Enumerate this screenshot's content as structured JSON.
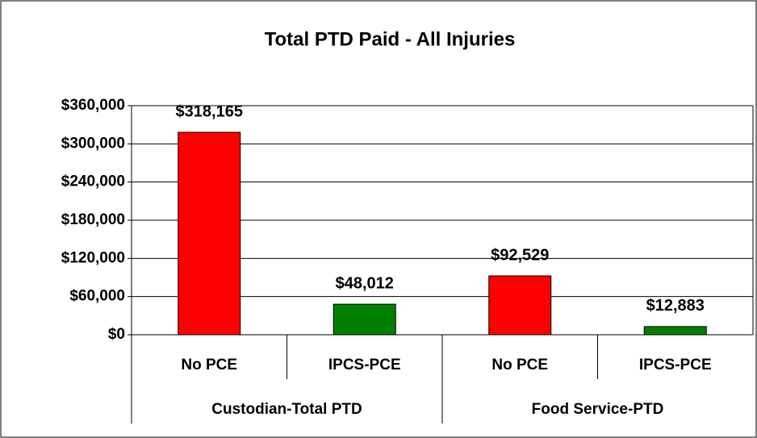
{
  "chart_data": {
    "type": "bar",
    "title": "Total PTD Paid - All Injuries",
    "categories": [
      "No PCE",
      "IPCS-PCE",
      "No PCE",
      "IPCS-PCE"
    ],
    "groups": [
      "Custodian-Total PTD",
      "Food Service-PTD"
    ],
    "values": [
      318165,
      48012,
      92529,
      12883
    ],
    "value_labels": [
      "$318,165",
      "$48,012",
      "$92,529",
      "$12,883"
    ],
    "colors": [
      "#ff0000",
      "#008000",
      "#ff0000",
      "#008000"
    ],
    "ylim": [
      0,
      360000
    ],
    "yticks": [
      {
        "value": 0,
        "label": "$0"
      },
      {
        "value": 60000,
        "label": "$60,000"
      },
      {
        "value": 120000,
        "label": "$120,000"
      },
      {
        "value": 180000,
        "label": "$180,000"
      },
      {
        "value": 240000,
        "label": "$240,000"
      },
      {
        "value": 300000,
        "label": "$300,000"
      },
      {
        "value": 360000,
        "label": "$360,000"
      }
    ],
    "grid": true
  }
}
